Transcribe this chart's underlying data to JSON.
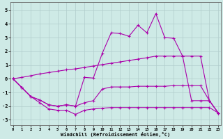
{
  "xlabel": "Windchill (Refroidissement éolien,°C)",
  "background_color": "#ceeae6",
  "grid_color": "#b0cccc",
  "line_color": "#aa00aa",
  "xlim_min": -0.3,
  "xlim_max": 23.3,
  "ylim_min": -3.4,
  "ylim_max": 5.6,
  "yticks": [
    -3,
    -2,
    -1,
    0,
    1,
    2,
    3,
    4,
    5
  ],
  "xticks": [
    0,
    1,
    2,
    3,
    4,
    5,
    6,
    7,
    8,
    9,
    10,
    11,
    12,
    13,
    14,
    15,
    16,
    17,
    18,
    19,
    20,
    21,
    22,
    23
  ],
  "lines": [
    {
      "x": [
        0,
        1,
        2,
        3,
        4,
        5,
        6,
        7,
        8,
        9,
        10,
        11,
        12,
        13,
        14,
        15,
        16,
        17,
        18,
        19,
        20,
        21,
        22,
        23
      ],
      "y": [
        0.0,
        -0.65,
        -1.3,
        -1.75,
        -2.2,
        -2.3,
        -2.3,
        -2.6,
        -2.3,
        -2.2,
        -2.15,
        -2.1,
        -2.1,
        -2.1,
        -2.1,
        -2.1,
        -2.1,
        -2.1,
        -2.1,
        -2.1,
        -2.1,
        -2.1,
        -2.1,
        -2.5
      ]
    },
    {
      "x": [
        0,
        1,
        2,
        3,
        4,
        5,
        6,
        7,
        8,
        9,
        10,
        11,
        12,
        13,
        14,
        15,
        16,
        17,
        18,
        19,
        20,
        21,
        22,
        23
      ],
      "y": [
        0.0,
        -0.65,
        -1.3,
        -1.55,
        -1.9,
        -2.0,
        -1.9,
        -2.0,
        -1.75,
        -1.6,
        -0.75,
        -0.6,
        -0.6,
        -0.6,
        -0.55,
        -0.55,
        -0.55,
        -0.55,
        -0.5,
        -0.5,
        -0.5,
        -0.5,
        -1.6,
        -2.5
      ]
    },
    {
      "x": [
        0,
        1,
        2,
        3,
        4,
        5,
        6,
        7,
        8,
        9,
        10,
        11,
        12,
        13,
        14,
        15,
        16,
        17,
        18,
        19,
        20,
        21,
        22,
        23
      ],
      "y": [
        0.0,
        -0.65,
        -1.3,
        -1.55,
        -1.9,
        -2.0,
        -1.9,
        -2.0,
        0.1,
        0.05,
        1.85,
        3.35,
        3.3,
        3.1,
        3.9,
        3.35,
        4.75,
        3.0,
        2.95,
        1.65,
        1.65,
        1.65,
        -1.6,
        -2.5
      ]
    },
    {
      "x": [
        0,
        1,
        2,
        3,
        4,
        5,
        6,
        7,
        8,
        9,
        10,
        11,
        12,
        13,
        14,
        15,
        16,
        17,
        18,
        19,
        20,
        21,
        22,
        23
      ],
      "y": [
        0.0,
        0.1,
        0.22,
        0.35,
        0.45,
        0.55,
        0.65,
        0.72,
        0.82,
        0.93,
        1.03,
        1.13,
        1.23,
        1.33,
        1.43,
        1.53,
        1.65,
        1.65,
        1.65,
        1.65,
        -1.6,
        -1.6,
        -1.6,
        -2.5
      ]
    }
  ]
}
